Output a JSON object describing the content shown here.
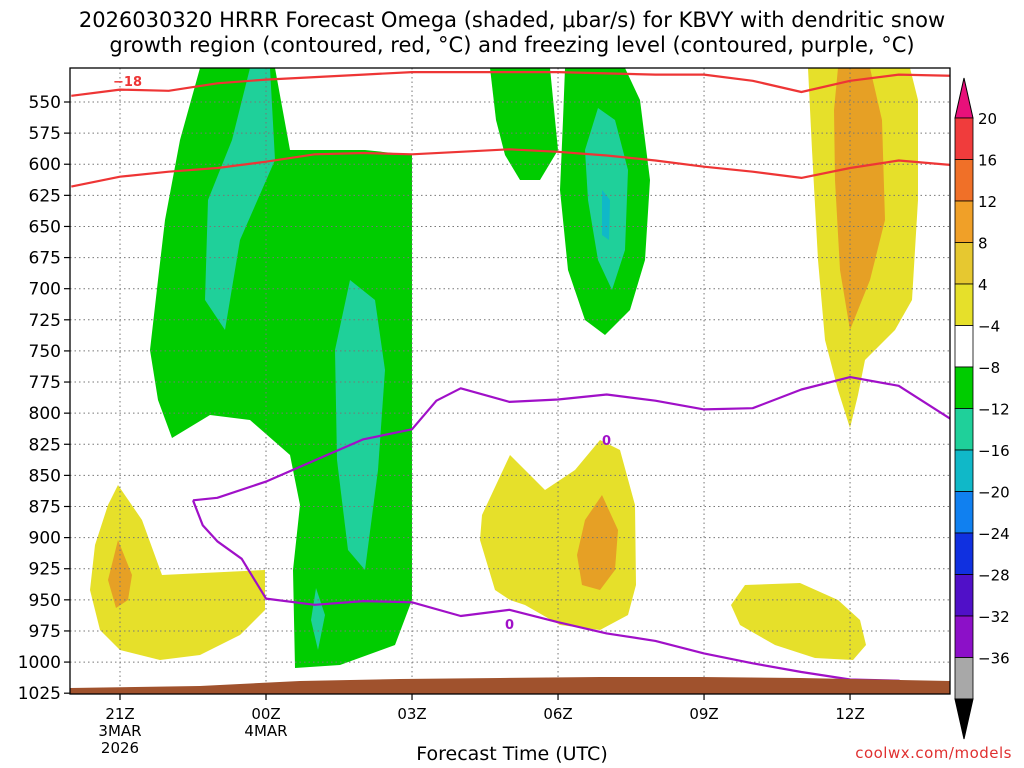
{
  "colors": {
    "green_band": "#00cc00",
    "teal_band": "#1fd09a",
    "cyan_band": "#10b8c8",
    "yellow_band": "#e6e02a",
    "orange_band": "#e6a025",
    "dgz_line": "#ee3535",
    "freezing_line": "#a010c8",
    "terrain": "#a0522d",
    "credit": "#e03030"
  },
  "chart_data": {
    "type": "contour_cross_section",
    "title_line1": "2026030320 HRRR Forecast Omega (shaded, μbar/s) for KBVY with dendritic snow",
    "title_line2": "growth region (contoured, red, °C) and freezing level (contoured, purple, °C)",
    "xlabel": "Forecast Time (UTC)",
    "credit": "coolwx.com/models",
    "x_ticks": [
      {
        "hour": 0,
        "line1": "21Z",
        "line2": "3MAR",
        "line3": "2026"
      },
      {
        "hour": 3,
        "line1": "00Z",
        "line2": "4MAR",
        "line3": ""
      },
      {
        "hour": 6,
        "line1": "03Z",
        "line2": "",
        "line3": ""
      },
      {
        "hour": 9,
        "line1": "06Z",
        "line2": "",
        "line3": ""
      },
      {
        "hour": 12,
        "line1": "09Z",
        "line2": "",
        "line3": ""
      },
      {
        "hour": 15,
        "line1": "12Z",
        "line2": "",
        "line3": ""
      }
    ],
    "x_range_hours": [
      -1,
      17.2
    ],
    "y_ticks": [
      "550",
      "575",
      "600",
      "625",
      "650",
      "675",
      "700",
      "725",
      "750",
      "775",
      "800",
      "825",
      "850",
      "875",
      "900",
      "925",
      "950",
      "975",
      "1000",
      "1025"
    ],
    "y_range_hpa": [
      525,
      1030
    ],
    "colorbar": {
      "labels": [
        "20",
        "16",
        "12",
        "8",
        "4",
        "−4",
        "−8",
        "−12",
        "−16",
        "−20",
        "−24",
        "−28",
        "−32",
        "−36"
      ],
      "colors": [
        "#e8107a",
        "#f03c3c",
        "#f07028",
        "#f0a028",
        "#e6c830",
        "#e6e02a",
        "#ffffff",
        "#00cc00",
        "#1fd09a",
        "#10b8c8",
        "#1080f0",
        "#1030e0",
        "#5010c8",
        "#8c10c8",
        "#a8a8a8",
        "#000000"
      ]
    },
    "contour_labels": {
      "dgz": "−18",
      "freezing_1": "0",
      "freezing_2": "0"
    },
    "dgz_upper_isotherm": [
      [
        -1,
        545
      ],
      [
        0,
        540
      ],
      [
        1,
        541
      ],
      [
        2,
        535
      ],
      [
        3,
        532
      ],
      [
        4,
        530
      ],
      [
        5,
        528
      ],
      [
        6,
        526
      ],
      [
        7,
        526
      ],
      [
        8,
        526
      ],
      [
        9,
        526
      ],
      [
        10,
        527
      ],
      [
        11,
        528
      ],
      [
        12,
        528
      ],
      [
        13,
        533
      ],
      [
        14,
        542
      ],
      [
        15,
        533
      ],
      [
        16,
        528
      ],
      [
        17.2,
        529
      ]
    ],
    "dgz_lower_isotherm": [
      [
        -1,
        618
      ],
      [
        0,
        610
      ],
      [
        1,
        606
      ],
      [
        2,
        603
      ],
      [
        3,
        598
      ],
      [
        4,
        592
      ],
      [
        5,
        591
      ],
      [
        6,
        592
      ],
      [
        7,
        590
      ],
      [
        8,
        588
      ],
      [
        9,
        590
      ],
      [
        10,
        593
      ],
      [
        11,
        597
      ],
      [
        12,
        602
      ],
      [
        13,
        606
      ],
      [
        14,
        611
      ],
      [
        15,
        603
      ],
      [
        16,
        597
      ],
      [
        17.2,
        601
      ]
    ],
    "freezing_level_upper": [
      [
        1.5,
        870
      ],
      [
        2,
        868
      ],
      [
        3,
        855
      ],
      [
        4,
        838
      ],
      [
        5,
        821
      ],
      [
        6,
        813
      ],
      [
        6.5,
        790
      ],
      [
        7,
        780
      ],
      [
        8,
        791
      ],
      [
        9,
        789
      ],
      [
        10,
        785
      ],
      [
        11,
        790
      ],
      [
        12,
        797
      ],
      [
        13,
        796
      ],
      [
        14,
        781
      ],
      [
        15,
        771
      ],
      [
        16,
        778
      ],
      [
        17.2,
        808
      ]
    ],
    "freezing_level_lower": [
      [
        1.5,
        870
      ],
      [
        1.7,
        890
      ],
      [
        2,
        903
      ],
      [
        2.5,
        917
      ],
      [
        3,
        949
      ],
      [
        4,
        954
      ],
      [
        5,
        951
      ],
      [
        6,
        952
      ],
      [
        7,
        963
      ],
      [
        8,
        958
      ],
      [
        9,
        968
      ],
      [
        10,
        977
      ],
      [
        11,
        983
      ],
      [
        12,
        993
      ],
      [
        13,
        1001
      ],
      [
        14,
        1008
      ],
      [
        15,
        1014
      ],
      [
        16,
        1015
      ],
      [
        16.2,
        1018
      ]
    ]
  }
}
